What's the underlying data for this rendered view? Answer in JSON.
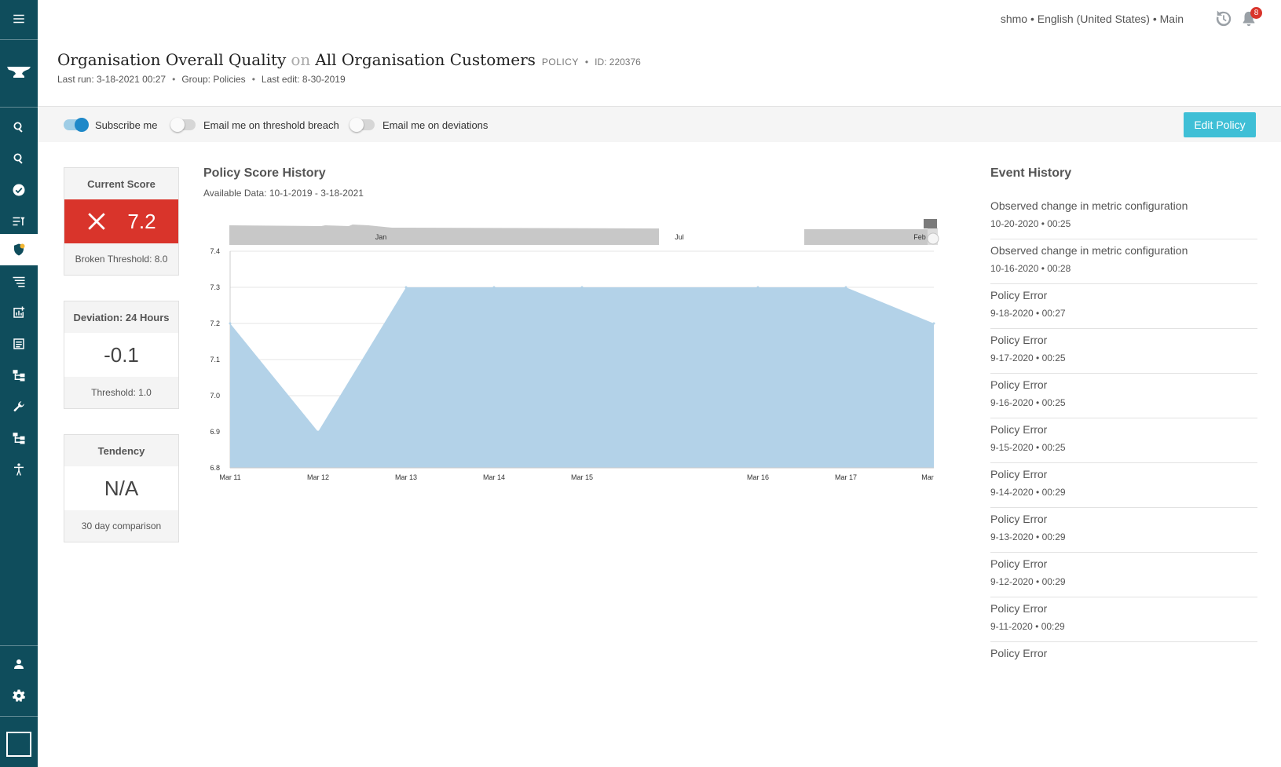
{
  "topbar": {
    "user": "shmo",
    "language": "English (United States)",
    "context": "Main",
    "separator": "•",
    "notification_count": "8"
  },
  "sidebar": {
    "items": [
      {
        "name": "menu",
        "icon": "hamburger-icon"
      },
      {
        "name": "home",
        "icon": "anvil-logo-icon"
      },
      {
        "name": "search",
        "icon": "search-icon"
      },
      {
        "name": "search-advanced",
        "icon": "search-icon"
      },
      {
        "name": "checks",
        "icon": "check-circle-icon"
      },
      {
        "name": "rules",
        "icon": "list-filter-icon"
      },
      {
        "name": "policies",
        "icon": "shield-icon",
        "active": true
      },
      {
        "name": "lists",
        "icon": "lines-icon"
      },
      {
        "name": "dashboards",
        "icon": "chart-add-icon"
      },
      {
        "name": "reports",
        "icon": "document-list-icon"
      },
      {
        "name": "hierarchy",
        "icon": "hierarchy-icon"
      },
      {
        "name": "tools",
        "icon": "wrench-icon"
      },
      {
        "name": "lineage",
        "icon": "hierarchy-icon"
      },
      {
        "name": "accessibility",
        "icon": "accessibility-icon"
      },
      {
        "name": "profile",
        "icon": "person-icon"
      },
      {
        "name": "settings",
        "icon": "gear-icon"
      },
      {
        "name": "collapse",
        "icon": "panel-icon"
      }
    ]
  },
  "header": {
    "title": "Organisation Overall Quality",
    "on": "on",
    "target": "All Organisation Customers",
    "type": "POLICY",
    "id_label": "ID: 220376",
    "last_run": "Last run: 3-18-2021 00:27",
    "group": "Group: Policies",
    "last_edit": "Last edit: 8-30-2019",
    "dot": "•"
  },
  "toolbar": {
    "subscribe_label": "Subscribe me",
    "subscribe_on": true,
    "threshold_label": "Email me on threshold breach",
    "threshold_on": false,
    "deviation_label": "Email me on deviations",
    "deviation_on": false,
    "edit_label": "Edit Policy"
  },
  "cards": {
    "current": {
      "title": "Current Score",
      "value": "7.2",
      "foot": "Broken Threshold: 8.0",
      "status_color": "#d9342b"
    },
    "deviation": {
      "title": "Deviation: 24 Hours",
      "value": "-0.1",
      "foot": "Threshold: 1.0"
    },
    "tendency": {
      "title": "Tendency",
      "value": "N/A",
      "foot": "30 day comparison"
    }
  },
  "chart": {
    "title": "Policy Score History",
    "subtitle": "Available Data: 10-1-2019 - 3-18-2021"
  },
  "chart_data": {
    "type": "area",
    "title": "Policy Score History",
    "x": [
      "Mar 11",
      "Mar 12",
      "Mar 13",
      "Mar 14",
      "Mar 15",
      "Mar 16",
      "Mar 17",
      "Mar"
    ],
    "x_days": [
      0,
      1,
      2,
      3,
      4,
      6,
      7,
      8
    ],
    "series": [
      {
        "values": [
          7.2,
          6.9,
          7.3,
          7.3,
          7.3,
          7.3,
          7.3,
          7.2
        ]
      }
    ],
    "yticks": [
      "7.4",
      "7.3",
      "7.2",
      "7.1",
      "7.0",
      "6.9",
      "6.8"
    ],
    "ylim": [
      6.8,
      7.4
    ],
    "grid": true,
    "fill_color": "#b3d2e8",
    "navigator_labels": [
      "Jan",
      "Jul",
      "Feb"
    ]
  },
  "events": {
    "title": "Event History",
    "items": [
      {
        "name": "Observed change in metric configuration",
        "time": "10-20-2020 • 00:25"
      },
      {
        "name": "Observed change in metric configuration",
        "time": "10-16-2020 • 00:28"
      },
      {
        "name": "Policy Error",
        "time": "9-18-2020 • 00:27"
      },
      {
        "name": "Policy Error",
        "time": "9-17-2020 • 00:25"
      },
      {
        "name": "Policy Error",
        "time": "9-16-2020 • 00:25"
      },
      {
        "name": "Policy Error",
        "time": "9-15-2020 • 00:25"
      },
      {
        "name": "Policy Error",
        "time": "9-14-2020 • 00:29"
      },
      {
        "name": "Policy Error",
        "time": "9-13-2020 • 00:29"
      },
      {
        "name": "Policy Error",
        "time": "9-12-2020 • 00:29"
      },
      {
        "name": "Policy Error",
        "time": "9-11-2020 • 00:29"
      },
      {
        "name": "Policy Error",
        "time": ""
      }
    ]
  }
}
